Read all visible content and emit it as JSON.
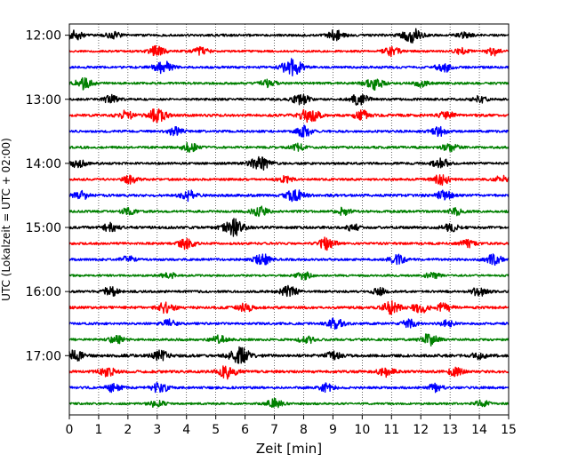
{
  "chart_data": {
    "type": "line",
    "subtype": "helicorder",
    "title": "",
    "xlabel": "Zeit  [min]",
    "ylabel": "UTC (Lokalzeit = UTC + 02:00)",
    "xlim": [
      0,
      15
    ],
    "x_ticks": [
      "0",
      "1",
      "2",
      "3",
      "4",
      "5",
      "6",
      "7",
      "8",
      "9",
      "10",
      "11",
      "12",
      "13",
      "14",
      "15"
    ],
    "y_ticks": [
      "12:00",
      "13:00",
      "14:00",
      "15:00",
      "16:00",
      "17:00"
    ],
    "grid": "vertical-dotted",
    "colors": [
      "#000000",
      "#ff0000",
      "#0000ff",
      "#008000"
    ],
    "traces": [
      {
        "start": "12:00",
        "color": "#000000",
        "amplitude": 0.8,
        "events": [
          {
            "t": 0.2,
            "a": 1.4
          },
          {
            "t": 1.5,
            "a": 1.0
          },
          {
            "t": 9.1,
            "a": 1.6
          },
          {
            "t": 11.7,
            "a": 2.2
          },
          {
            "t": 13.5,
            "a": 0.8
          }
        ]
      },
      {
        "start": "12:15",
        "color": "#ff0000",
        "amplitude": 0.7,
        "events": [
          {
            "t": 3.0,
            "a": 1.6
          },
          {
            "t": 4.5,
            "a": 1.2
          },
          {
            "t": 11.0,
            "a": 1.4
          },
          {
            "t": 13.4,
            "a": 1.0
          },
          {
            "t": 14.5,
            "a": 1.2
          }
        ]
      },
      {
        "start": "12:30",
        "color": "#0000ff",
        "amplitude": 0.8,
        "events": [
          {
            "t": 3.2,
            "a": 2.0
          },
          {
            "t": 7.6,
            "a": 2.6
          },
          {
            "t": 12.8,
            "a": 1.4
          }
        ]
      },
      {
        "start": "12:45",
        "color": "#008000",
        "amplitude": 0.8,
        "events": [
          {
            "t": 0.5,
            "a": 1.8
          },
          {
            "t": 6.8,
            "a": 1.2
          },
          {
            "t": 10.4,
            "a": 2.0
          },
          {
            "t": 12.0,
            "a": 1.0
          }
        ]
      },
      {
        "start": "13:00",
        "color": "#000000",
        "amplitude": 0.8,
        "events": [
          {
            "t": 1.4,
            "a": 1.2
          },
          {
            "t": 7.9,
            "a": 1.6
          },
          {
            "t": 9.9,
            "a": 1.8
          },
          {
            "t": 14.0,
            "a": 1.0
          }
        ]
      },
      {
        "start": "13:15",
        "color": "#ff0000",
        "amplitude": 0.9,
        "events": [
          {
            "t": 1.9,
            "a": 1.4
          },
          {
            "t": 3.0,
            "a": 2.0
          },
          {
            "t": 8.2,
            "a": 2.2
          },
          {
            "t": 10.0,
            "a": 1.4
          },
          {
            "t": 12.9,
            "a": 1.2
          }
        ]
      },
      {
        "start": "13:30",
        "color": "#0000ff",
        "amplitude": 0.8,
        "events": [
          {
            "t": 3.6,
            "a": 1.2
          },
          {
            "t": 8.0,
            "a": 1.6
          },
          {
            "t": 12.6,
            "a": 1.4
          }
        ]
      },
      {
        "start": "13:45",
        "color": "#008000",
        "amplitude": 0.8,
        "events": [
          {
            "t": 4.1,
            "a": 1.4
          },
          {
            "t": 7.8,
            "a": 1.0
          },
          {
            "t": 13.0,
            "a": 1.2
          }
        ]
      },
      {
        "start": "14:00",
        "color": "#000000",
        "amplitude": 0.8,
        "events": [
          {
            "t": 0.3,
            "a": 1.4
          },
          {
            "t": 6.5,
            "a": 2.2
          },
          {
            "t": 12.7,
            "a": 1.6
          }
        ]
      },
      {
        "start": "14:15",
        "color": "#ff0000",
        "amplitude": 0.8,
        "events": [
          {
            "t": 2.1,
            "a": 1.2
          },
          {
            "t": 7.4,
            "a": 1.0
          },
          {
            "t": 12.7,
            "a": 1.6
          },
          {
            "t": 14.8,
            "a": 1.2
          }
        ]
      },
      {
        "start": "14:30",
        "color": "#0000ff",
        "amplitude": 0.9,
        "events": [
          {
            "t": 0.4,
            "a": 1.2
          },
          {
            "t": 4.1,
            "a": 1.6
          },
          {
            "t": 7.7,
            "a": 1.8
          },
          {
            "t": 12.8,
            "a": 1.4
          }
        ]
      },
      {
        "start": "14:45",
        "color": "#008000",
        "amplitude": 0.8,
        "events": [
          {
            "t": 2.0,
            "a": 1.0
          },
          {
            "t": 6.5,
            "a": 1.6
          },
          {
            "t": 9.4,
            "a": 1.2
          },
          {
            "t": 13.2,
            "a": 1.0
          }
        ]
      },
      {
        "start": "15:00",
        "color": "#000000",
        "amplitude": 0.9,
        "events": [
          {
            "t": 1.4,
            "a": 1.2
          },
          {
            "t": 5.6,
            "a": 2.6
          },
          {
            "t": 9.7,
            "a": 1.0
          },
          {
            "t": 13.0,
            "a": 1.2
          }
        ]
      },
      {
        "start": "15:15",
        "color": "#ff0000",
        "amplitude": 0.8,
        "events": [
          {
            "t": 4.0,
            "a": 1.6
          },
          {
            "t": 8.8,
            "a": 1.8
          },
          {
            "t": 13.6,
            "a": 1.2
          }
        ]
      },
      {
        "start": "15:30",
        "color": "#0000ff",
        "amplitude": 0.8,
        "events": [
          {
            "t": 2.0,
            "a": 1.0
          },
          {
            "t": 6.6,
            "a": 1.6
          },
          {
            "t": 11.2,
            "a": 1.4
          },
          {
            "t": 14.5,
            "a": 1.6
          }
        ]
      },
      {
        "start": "15:45",
        "color": "#008000",
        "amplitude": 0.7,
        "events": [
          {
            "t": 3.4,
            "a": 1.0
          },
          {
            "t": 8.0,
            "a": 1.2
          },
          {
            "t": 12.4,
            "a": 1.0
          }
        ]
      },
      {
        "start": "16:00",
        "color": "#000000",
        "amplitude": 0.8,
        "events": [
          {
            "t": 1.4,
            "a": 1.4
          },
          {
            "t": 7.5,
            "a": 1.6
          },
          {
            "t": 10.6,
            "a": 1.0
          },
          {
            "t": 14.0,
            "a": 1.4
          }
        ]
      },
      {
        "start": "16:15",
        "color": "#ff0000",
        "amplitude": 0.9,
        "events": [
          {
            "t": 3.3,
            "a": 1.6
          },
          {
            "t": 6.0,
            "a": 1.2
          },
          {
            "t": 11.0,
            "a": 1.8
          },
          {
            "t": 12.0,
            "a": 1.6
          },
          {
            "t": 12.8,
            "a": 1.4
          }
        ]
      },
      {
        "start": "16:30",
        "color": "#0000ff",
        "amplitude": 0.8,
        "events": [
          {
            "t": 3.4,
            "a": 1.2
          },
          {
            "t": 9.1,
            "a": 1.6
          },
          {
            "t": 11.6,
            "a": 1.2
          },
          {
            "t": 12.9,
            "a": 1.0
          }
        ]
      },
      {
        "start": "16:45",
        "color": "#008000",
        "amplitude": 0.8,
        "events": [
          {
            "t": 1.6,
            "a": 1.2
          },
          {
            "t": 5.1,
            "a": 1.2
          },
          {
            "t": 8.1,
            "a": 1.2
          },
          {
            "t": 12.3,
            "a": 1.8
          }
        ]
      },
      {
        "start": "17:00",
        "color": "#000000",
        "amplitude": 1.0,
        "events": [
          {
            "t": 0.2,
            "a": 1.6
          },
          {
            "t": 3.1,
            "a": 1.4
          },
          {
            "t": 5.8,
            "a": 2.6
          },
          {
            "t": 9.0,
            "a": 1.2
          },
          {
            "t": 14.0,
            "a": 1.0
          }
        ]
      },
      {
        "start": "17:15",
        "color": "#ff0000",
        "amplitude": 0.9,
        "events": [
          {
            "t": 1.3,
            "a": 1.4
          },
          {
            "t": 5.4,
            "a": 2.0
          },
          {
            "t": 10.8,
            "a": 1.4
          },
          {
            "t": 13.2,
            "a": 1.2
          }
        ]
      },
      {
        "start": "17:30",
        "color": "#0000ff",
        "amplitude": 0.8,
        "events": [
          {
            "t": 1.5,
            "a": 1.2
          },
          {
            "t": 3.1,
            "a": 1.6
          },
          {
            "t": 8.8,
            "a": 1.2
          },
          {
            "t": 12.5,
            "a": 1.2
          }
        ]
      },
      {
        "start": "17:45",
        "color": "#008000",
        "amplitude": 0.7,
        "events": [
          {
            "t": 3.0,
            "a": 1.2
          },
          {
            "t": 7.0,
            "a": 1.4
          },
          {
            "t": 14.1,
            "a": 1.0
          }
        ]
      }
    ]
  }
}
